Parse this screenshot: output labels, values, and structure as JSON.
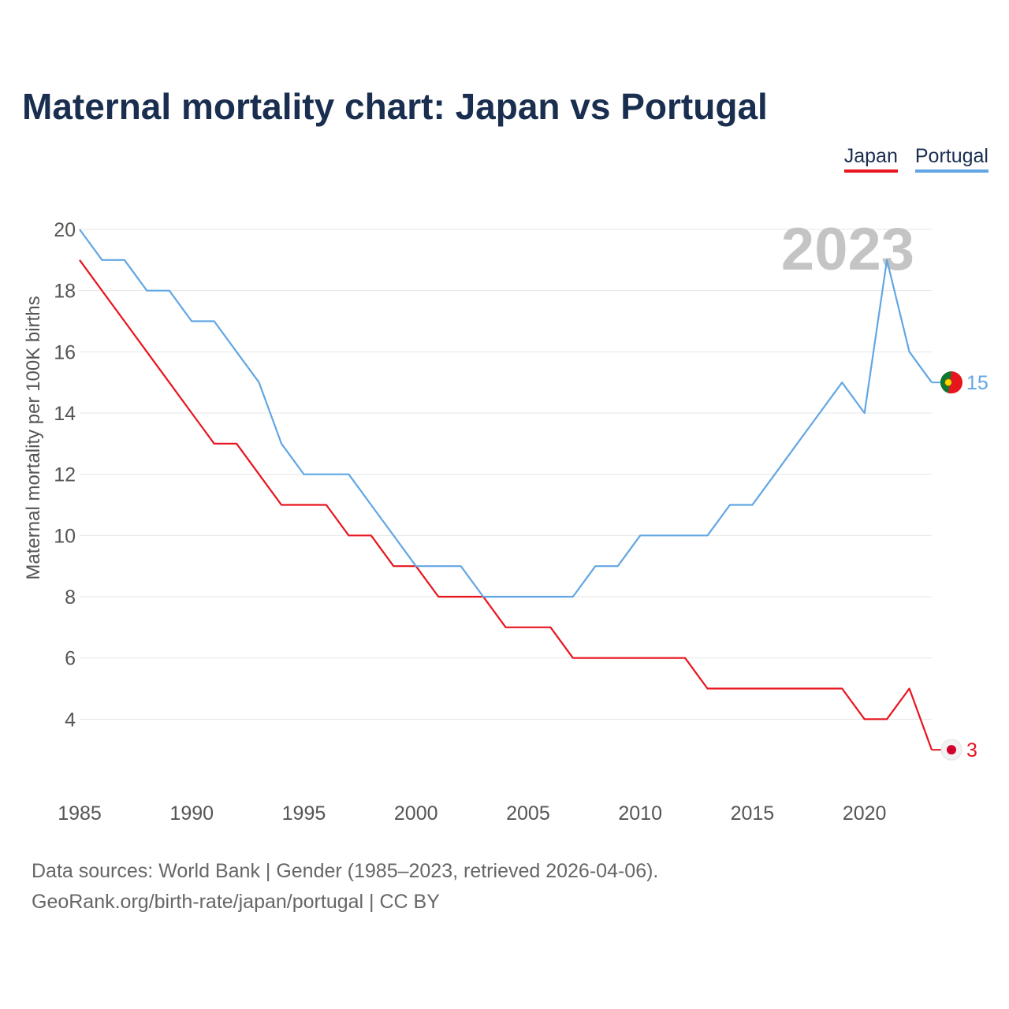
{
  "title": "Maternal mortality chart: Japan vs Portugal",
  "legend": [
    {
      "name": "Japan",
      "color": "#e8141e"
    },
    {
      "name": "Portugal",
      "color": "#62a6e4"
    }
  ],
  "footer": {
    "line1": "Data sources: World Bank | Gender (1985–2023, retrieved 2026-04-06).",
    "line2": "GeoRank.org/birth-rate/japan/portugal | CC BY"
  },
  "chart_data": {
    "type": "line",
    "title": "Maternal mortality chart: Japan vs Portugal",
    "year_label": "2023",
    "xlabel": "",
    "ylabel": "Maternal mortality per 100K births",
    "xlim": [
      1985,
      2023
    ],
    "ylim": [
      2,
      20
    ],
    "x_ticks": [
      1985,
      1990,
      1995,
      2000,
      2005,
      2010,
      2015,
      2020
    ],
    "y_ticks": [
      4,
      6,
      8,
      10,
      12,
      14,
      16,
      18,
      20
    ],
    "grid": true,
    "x": [
      1985,
      1986,
      1987,
      1988,
      1989,
      1990,
      1991,
      1992,
      1993,
      1994,
      1995,
      1996,
      1997,
      1998,
      1999,
      2000,
      2001,
      2002,
      2003,
      2004,
      2005,
      2006,
      2007,
      2008,
      2009,
      2010,
      2011,
      2012,
      2013,
      2014,
      2015,
      2016,
      2017,
      2018,
      2019,
      2020,
      2021,
      2022,
      2023
    ],
    "series": [
      {
        "name": "Japan",
        "color": "#e8141e",
        "end_label": "3",
        "values": [
          19,
          18,
          17,
          16,
          15,
          14,
          13,
          13,
          12,
          11,
          11,
          11,
          10,
          10,
          9,
          9,
          8,
          8,
          8,
          7,
          7,
          7,
          6,
          6,
          6,
          6,
          6,
          6,
          5,
          5,
          5,
          5,
          5,
          5,
          5,
          4,
          4,
          5,
          3
        ]
      },
      {
        "name": "Portugal",
        "color": "#62a6e4",
        "end_label": "15",
        "values": [
          20,
          19,
          19,
          18,
          18,
          17,
          17,
          16,
          15,
          13,
          12,
          12,
          12,
          11,
          10,
          9,
          9,
          9,
          8,
          8,
          8,
          8,
          8,
          9,
          9,
          10,
          10,
          10,
          10,
          11,
          11,
          12,
          13,
          14,
          15,
          14,
          19,
          16,
          15
        ]
      }
    ]
  }
}
